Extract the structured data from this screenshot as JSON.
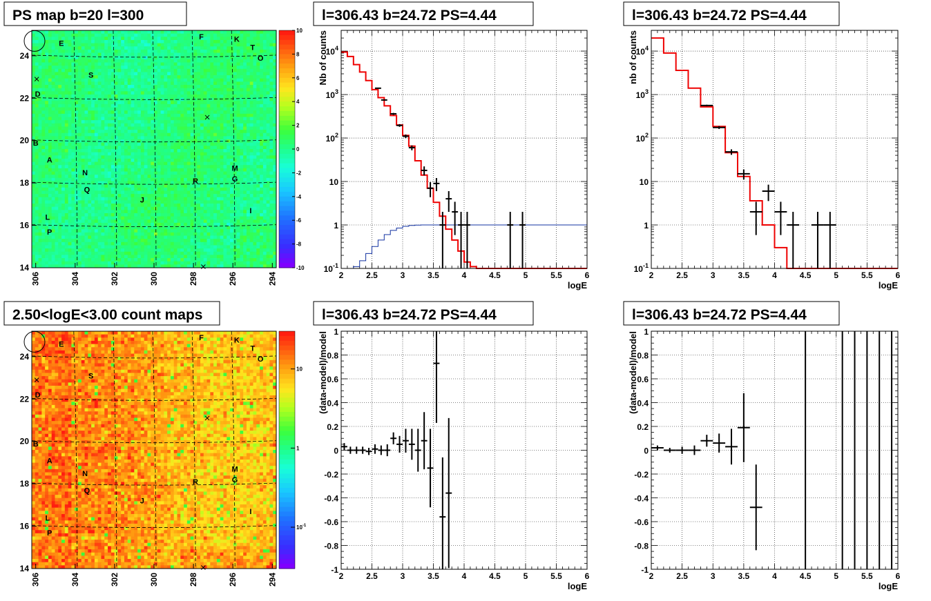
{
  "chart_data": [
    {
      "type": "heatmap",
      "title": "PS map b=20 l=300",
      "x_ticks": [
        "306",
        "304",
        "302",
        "300",
        "298",
        "296",
        "294"
      ],
      "y_ticks": [
        "14",
        "16",
        "18",
        "20",
        "22",
        "24"
      ],
      "xlim": [
        306.2,
        293.8
      ],
      "ylim": [
        14,
        25.2
      ],
      "colorbar": {
        "min": -10,
        "max": 10,
        "ticks": [
          "10",
          "8",
          "6",
          "4",
          "2",
          "0",
          "-2",
          "-4",
          "-6",
          "-8",
          "-10"
        ]
      },
      "base_level": 0.3,
      "sources": [
        {
          "name": "E",
          "l": 304.7,
          "b": 24.6
        },
        {
          "name": "F",
          "l": 297.6,
          "b": 24.9
        },
        {
          "name": "K",
          "l": 295.8,
          "b": 24.8
        },
        {
          "name": "T",
          "l": 295.0,
          "b": 24.4
        },
        {
          "name": "O",
          "l": 294.6,
          "b": 23.9
        },
        {
          "name": "S",
          "l": 303.2,
          "b": 23.1
        },
        {
          "name": "D",
          "l": 305.9,
          "b": 22.2
        },
        {
          "name": "B",
          "l": 306.0,
          "b": 19.9
        },
        {
          "name": "A",
          "l": 305.3,
          "b": 19.1
        },
        {
          "name": "N",
          "l": 303.5,
          "b": 18.5
        },
        {
          "name": "M",
          "l": 295.9,
          "b": 18.7
        },
        {
          "name": "R",
          "l": 297.9,
          "b": 18.1
        },
        {
          "name": "G",
          "l": 295.9,
          "b": 18.2
        },
        {
          "name": "Q",
          "l": 303.4,
          "b": 17.7
        },
        {
          "name": "J",
          "l": 300.6,
          "b": 17.2
        },
        {
          "name": "I",
          "l": 295.1,
          "b": 16.7
        },
        {
          "name": "L",
          "l": 305.4,
          "b": 16.4
        },
        {
          "name": "P",
          "l": 305.3,
          "b": 15.7
        }
      ]
    },
    {
      "type": "histogram",
      "title": "l=306.43 b=24.72 PS=4.44",
      "xlabel": "logE",
      "ylabel": "Nb of counts",
      "xlim": [
        2,
        6
      ],
      "ylim": [
        0.1,
        30000
      ],
      "ylog": true,
      "x_ticks": [
        "2",
        "2.5",
        "3",
        "3.5",
        "4",
        "4.5",
        "5",
        "5.5",
        "6"
      ],
      "y_ticks": [
        "10^-1",
        "1",
        "10",
        "10^2",
        "10^3",
        "10^4"
      ],
      "data": [
        {
          "x": 2.6,
          "y": 1400,
          "ex": 0.05
        },
        {
          "x": 2.7,
          "y": 750,
          "ex": 0.05
        },
        {
          "x": 2.85,
          "y": 360,
          "ex": 0.05
        },
        {
          "x": 2.95,
          "y": 195,
          "ex": 0.05
        },
        {
          "x": 3.05,
          "y": 110,
          "ex": 0.05
        },
        {
          "x": 3.15,
          "y": 60,
          "ex": 0.05
        },
        {
          "x": 3.35,
          "y": 18,
          "ex": 0.05
        },
        {
          "x": 3.45,
          "y": 7,
          "ex": 0.05
        },
        {
          "x": 3.55,
          "y": 9,
          "ex": 0.05
        },
        {
          "x": 3.65,
          "y": 1,
          "ex": 0.05
        },
        {
          "x": 3.75,
          "y": 4,
          "ex": 0.05
        },
        {
          "x": 3.85,
          "y": 2,
          "ex": 0.05
        },
        {
          "x": 3.95,
          "y": 1,
          "ex": 0.05
        },
        {
          "x": 4.05,
          "y": 1,
          "ex": 0.05
        },
        {
          "x": 4.75,
          "y": 1,
          "ex": 0.05
        },
        {
          "x": 4.95,
          "y": 1,
          "ex": 0.05
        }
      ],
      "model_edges": [
        2,
        2.1,
        2.2,
        2.3,
        2.4,
        2.5,
        2.6,
        2.7,
        2.8,
        2.9,
        3.0,
        3.1,
        3.2,
        3.3,
        3.4,
        3.5,
        3.6,
        3.7,
        3.8,
        3.9,
        4.0,
        4.1,
        4.2,
        6
      ],
      "model_values": [
        9500,
        7500,
        4900,
        3300,
        2100,
        1300,
        850,
        550,
        330,
        200,
        115,
        65,
        30,
        14,
        7,
        3.3,
        1.6,
        0.8,
        0.45,
        0.25,
        0.14,
        0.11,
        0.1
      ],
      "psf_edges": [
        2,
        2.2,
        2.3,
        2.4,
        2.5,
        2.6,
        2.7,
        2.8,
        2.9,
        3.0,
        3.1,
        3.2,
        3.3,
        3.5,
        6
      ],
      "psf_values": [
        0.1,
        0.11,
        0.15,
        0.22,
        0.32,
        0.45,
        0.6,
        0.75,
        0.85,
        0.93,
        0.97,
        0.99,
        1.0,
        1.0
      ]
    },
    {
      "type": "histogram",
      "title": "l=306.43 b=24.72 PS=4.44",
      "xlabel": "logE",
      "ylabel": "nb of counts",
      "xlim": [
        2,
        6
      ],
      "ylim": [
        0.1,
        30000
      ],
      "ylog": true,
      "x_ticks": [
        "2",
        "2.5",
        "3",
        "3.5",
        "4",
        "4.5",
        "5",
        "5.5",
        "6"
      ],
      "y_ticks": [
        "10^-1",
        "1",
        "10",
        "10^2",
        "10^3",
        "10^4"
      ],
      "data": [
        {
          "x": 2.9,
          "y": 560,
          "ex": 0.1
        },
        {
          "x": 3.1,
          "y": 175,
          "ex": 0.1
        },
        {
          "x": 3.3,
          "y": 48,
          "ex": 0.1
        },
        {
          "x": 3.5,
          "y": 15,
          "ex": 0.1
        },
        {
          "x": 3.7,
          "y": 2,
          "ex": 0.1
        },
        {
          "x": 3.9,
          "y": 6,
          "ex": 0.1
        },
        {
          "x": 4.1,
          "y": 2,
          "ex": 0.1
        },
        {
          "x": 4.3,
          "y": 1,
          "ex": 0.1
        },
        {
          "x": 4.7,
          "y": 1,
          "ex": 0.1
        },
        {
          "x": 4.9,
          "y": 1,
          "ex": 0.1
        }
      ],
      "model_edges": [
        2,
        2.2,
        2.4,
        2.6,
        2.8,
        3.0,
        3.2,
        3.4,
        3.6,
        3.8,
        4.0,
        4.2,
        6
      ],
      "model_values": [
        20000,
        9000,
        3600,
        1400,
        520,
        185,
        46,
        13,
        3.6,
        1.0,
        0.3,
        0.1
      ]
    },
    {
      "type": "heatmap",
      "title": "2.50<logE<3.00 count maps",
      "x_ticks": [
        "306",
        "304",
        "302",
        "300",
        "298",
        "296",
        "294"
      ],
      "y_ticks": [
        "14",
        "16",
        "18",
        "20",
        "22",
        "24"
      ],
      "xlim": [
        306.2,
        293.8
      ],
      "ylim": [
        14,
        25.2
      ],
      "colorbar": {
        "log": true,
        "min": 0.03,
        "max": 30,
        "ticks": [
          "10",
          "1",
          "10^-1"
        ]
      }
    },
    {
      "type": "scatter",
      "title": "l=306.43 b=24.72 PS=4.44",
      "xlabel": "logE",
      "ylabel": "(data-model)/model",
      "xlim": [
        2,
        6
      ],
      "ylim": [
        -1,
        1
      ],
      "x_ticks": [
        "2",
        "2.5",
        "3",
        "3.5",
        "4",
        "4.5",
        "5",
        "5.5",
        "6"
      ],
      "y_ticks": [
        "-1",
        "-0.8",
        "-0.6",
        "-0.4",
        "-0.2",
        "0",
        "0.2",
        "0.4",
        "0.6",
        "0.8",
        "1"
      ],
      "data": [
        {
          "x": 2.05,
          "y": 0.03,
          "ex": 0.05,
          "ey": 0.03
        },
        {
          "x": 2.15,
          "y": 0.0,
          "ex": 0.05,
          "ey": 0.03
        },
        {
          "x": 2.25,
          "y": 0.0,
          "ex": 0.05,
          "ey": 0.03
        },
        {
          "x": 2.35,
          "y": 0.0,
          "ex": 0.05,
          "ey": 0.03
        },
        {
          "x": 2.45,
          "y": -0.01,
          "ex": 0.05,
          "ey": 0.03
        },
        {
          "x": 2.55,
          "y": 0.01,
          "ex": 0.05,
          "ey": 0.04
        },
        {
          "x": 2.65,
          "y": 0.0,
          "ex": 0.05,
          "ey": 0.04
        },
        {
          "x": 2.75,
          "y": 0.0,
          "ex": 0.05,
          "ey": 0.05
        },
        {
          "x": 2.85,
          "y": 0.1,
          "ex": 0.05,
          "ey": 0.05
        },
        {
          "x": 2.95,
          "y": 0.05,
          "ex": 0.05,
          "ey": 0.07
        },
        {
          "x": 3.05,
          "y": 0.08,
          "ex": 0.05,
          "ey": 0.1
        },
        {
          "x": 3.15,
          "y": 0.05,
          "ex": 0.05,
          "ey": 0.13
        },
        {
          "x": 3.25,
          "y": 0.0,
          "ex": 0.05,
          "ey": 0.18
        },
        {
          "x": 3.35,
          "y": 0.08,
          "ex": 0.05,
          "ey": 0.24
        },
        {
          "x": 3.45,
          "y": -0.15,
          "ex": 0.05,
          "ey": 0.33
        },
        {
          "x": 3.55,
          "y": 0.73,
          "ex": 0.05,
          "ey": 0.5
        },
        {
          "x": 3.65,
          "y": -0.56,
          "ex": 0.05,
          "ey": 0.5
        },
        {
          "x": 3.75,
          "y": -0.36,
          "ex": 0.05,
          "ey": 0.63
        }
      ]
    },
    {
      "type": "scatter",
      "title": "l=306.43 b=24.72 PS=4.44",
      "xlabel": "logE",
      "ylabel": "(data-model)/model",
      "xlim": [
        2,
        6
      ],
      "ylim": [
        -1,
        1
      ],
      "x_ticks": [
        "2",
        "2.5",
        "3",
        "3.5",
        "4",
        "4.5",
        "5",
        "5.5",
        "6"
      ],
      "y_ticks": [
        "-1",
        "-0.8",
        "-0.6",
        "-0.4",
        "-0.2",
        "0",
        "0.2",
        "0.4",
        "0.6",
        "0.8",
        "1"
      ],
      "data": [
        {
          "x": 2.1,
          "y": 0.02,
          "ex": 0.1,
          "ey": 0.02
        },
        {
          "x": 2.3,
          "y": 0.0,
          "ex": 0.1,
          "ey": 0.02
        },
        {
          "x": 2.5,
          "y": 0.0,
          "ex": 0.1,
          "ey": 0.03
        },
        {
          "x": 2.7,
          "y": 0.0,
          "ex": 0.1,
          "ey": 0.04
        },
        {
          "x": 2.9,
          "y": 0.08,
          "ex": 0.1,
          "ey": 0.05
        },
        {
          "x": 3.1,
          "y": 0.06,
          "ex": 0.1,
          "ey": 0.08
        },
        {
          "x": 3.3,
          "y": 0.03,
          "ex": 0.1,
          "ey": 0.15
        },
        {
          "x": 3.5,
          "y": 0.19,
          "ex": 0.1,
          "ey": 0.29
        },
        {
          "x": 3.7,
          "y": -0.48,
          "ex": 0.1,
          "ey": 0.36
        }
      ],
      "vlines": [
        4.5,
        5.1,
        5.3,
        5.5,
        5.7,
        5.9
      ]
    }
  ]
}
